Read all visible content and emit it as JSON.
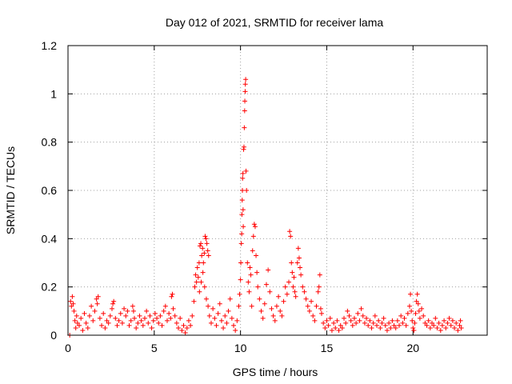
{
  "chart_data": {
    "type": "scatter",
    "title": "Day 012 of 2021, SRMTID for receiver lama",
    "xlabel": "GPS time / hours",
    "ylabel": "SRMTID / TECUs",
    "xlim": [
      0,
      24.3
    ],
    "ylim": [
      0,
      1.2
    ],
    "xticks": [
      0,
      5,
      10,
      15,
      20
    ],
    "xtick_labels": [
      "0",
      "5",
      "10",
      "15",
      "20"
    ],
    "yticks": [
      0,
      0.2,
      0.4,
      0.6,
      0.8,
      1.0,
      1.2
    ],
    "ytick_labels": [
      "0",
      "0.2",
      "0.4",
      "0.6",
      "0.8",
      "1",
      "1.2"
    ],
    "grid": true,
    "marker": "+",
    "color": "#ff0000",
    "series": [
      {
        "name": "SRMTID",
        "points": [
          [
            0.1,
            0.0
          ],
          [
            0.15,
            0.14
          ],
          [
            0.2,
            0.12
          ],
          [
            0.25,
            0.16
          ],
          [
            0.3,
            0.13
          ],
          [
            0.35,
            0.1
          ],
          [
            0.4,
            0.06
          ],
          [
            0.45,
            0.03
          ],
          [
            0.5,
            0.08
          ],
          [
            0.55,
            0.05
          ],
          [
            0.65,
            0.04
          ],
          [
            0.75,
            0.07
          ],
          [
            0.85,
            0.02
          ],
          [
            0.95,
            0.09
          ],
          [
            1.05,
            0.05
          ],
          [
            1.15,
            0.03
          ],
          [
            1.25,
            0.08
          ],
          [
            1.35,
            0.12
          ],
          [
            1.45,
            0.06
          ],
          [
            1.55,
            0.1
          ],
          [
            1.65,
            0.15
          ],
          [
            1.7,
            0.13
          ],
          [
            1.75,
            0.16
          ],
          [
            1.85,
            0.07
          ],
          [
            1.95,
            0.04
          ],
          [
            2.05,
            0.09
          ],
          [
            2.15,
            0.03
          ],
          [
            2.25,
            0.06
          ],
          [
            2.35,
            0.05
          ],
          [
            2.45,
            0.08
          ],
          [
            2.55,
            0.11
          ],
          [
            2.6,
            0.13
          ],
          [
            2.65,
            0.14
          ],
          [
            2.75,
            0.07
          ],
          [
            2.85,
            0.04
          ],
          [
            2.95,
            0.06
          ],
          [
            3.05,
            0.09
          ],
          [
            3.15,
            0.05
          ],
          [
            3.25,
            0.11
          ],
          [
            3.35,
            0.08
          ],
          [
            3.45,
            0.1
          ],
          [
            3.55,
            0.04
          ],
          [
            3.65,
            0.06
          ],
          [
            3.75,
            0.12
          ],
          [
            3.8,
            0.1
          ],
          [
            3.85,
            0.07
          ],
          [
            3.95,
            0.03
          ],
          [
            4.05,
            0.05
          ],
          [
            4.15,
            0.08
          ],
          [
            4.25,
            0.06
          ],
          [
            4.35,
            0.04
          ],
          [
            4.45,
            0.07
          ],
          [
            4.55,
            0.1
          ],
          [
            4.65,
            0.05
          ],
          [
            4.75,
            0.08
          ],
          [
            4.85,
            0.03
          ],
          [
            4.95,
            0.06
          ],
          [
            5.05,
            0.09
          ],
          [
            5.15,
            0.07
          ],
          [
            5.25,
            0.05
          ],
          [
            5.35,
            0.08
          ],
          [
            5.45,
            0.04
          ],
          [
            5.55,
            0.1
          ],
          [
            5.65,
            0.12
          ],
          [
            5.75,
            0.06
          ],
          [
            5.85,
            0.09
          ],
          [
            5.95,
            0.07
          ],
          [
            6.0,
            0.16
          ],
          [
            6.05,
            0.17
          ],
          [
            6.1,
            0.11
          ],
          [
            6.2,
            0.08
          ],
          [
            6.3,
            0.05
          ],
          [
            6.4,
            0.03
          ],
          [
            6.5,
            0.07
          ],
          [
            6.6,
            0.02
          ],
          [
            6.7,
            0.04
          ],
          [
            6.8,
            0.01
          ],
          [
            6.9,
            0.03
          ],
          [
            7.0,
            0.06
          ],
          [
            7.1,
            0.04
          ],
          [
            7.2,
            0.08
          ],
          [
            7.3,
            0.14
          ],
          [
            7.35,
            0.2
          ],
          [
            7.4,
            0.25
          ],
          [
            7.45,
            0.22
          ],
          [
            7.5,
            0.28
          ],
          [
            7.55,
            0.24
          ],
          [
            7.6,
            0.3
          ],
          [
            7.65,
            0.37
          ],
          [
            7.7,
            0.38
          ],
          [
            7.75,
            0.33
          ],
          [
            7.8,
            0.36
          ],
          [
            7.85,
            0.3
          ],
          [
            7.9,
            0.34
          ],
          [
            7.95,
            0.41
          ],
          [
            8.0,
            0.4
          ],
          [
            8.05,
            0.38
          ],
          [
            8.1,
            0.35
          ],
          [
            8.15,
            0.33
          ],
          [
            7.62,
            0.18
          ],
          [
            7.72,
            0.22
          ],
          [
            7.82,
            0.26
          ],
          [
            7.92,
            0.2
          ],
          [
            8.02,
            0.15
          ],
          [
            8.12,
            0.12
          ],
          [
            8.2,
            0.08
          ],
          [
            8.3,
            0.05
          ],
          [
            8.4,
            0.11
          ],
          [
            8.5,
            0.07
          ],
          [
            8.6,
            0.04
          ],
          [
            8.7,
            0.09
          ],
          [
            8.8,
            0.13
          ],
          [
            8.9,
            0.06
          ],
          [
            9.0,
            0.03
          ],
          [
            9.1,
            0.08
          ],
          [
            9.2,
            0.05
          ],
          [
            9.3,
            0.1
          ],
          [
            9.4,
            0.15
          ],
          [
            9.5,
            0.07
          ],
          [
            9.6,
            0.04
          ],
          [
            9.7,
            0.02
          ],
          [
            9.8,
            0.06
          ],
          [
            9.9,
            0.12
          ],
          [
            9.95,
            0.17
          ],
          [
            10.0,
            0.23
          ],
          [
            10.02,
            0.3
          ],
          [
            10.05,
            0.38
          ],
          [
            10.07,
            0.42
          ],
          [
            10.08,
            0.5
          ],
          [
            10.1,
            0.56
          ],
          [
            10.11,
            0.6
          ],
          [
            10.12,
            0.65
          ],
          [
            10.14,
            0.67
          ],
          [
            10.15,
            0.52
          ],
          [
            10.16,
            0.45
          ],
          [
            10.18,
            0.77
          ],
          [
            10.2,
            0.78
          ],
          [
            10.22,
            0.86
          ],
          [
            10.24,
            0.93
          ],
          [
            10.25,
            0.97
          ],
          [
            10.27,
            1.01
          ],
          [
            10.28,
            1.04
          ],
          [
            10.3,
            1.06
          ],
          [
            10.32,
            0.68
          ],
          [
            10.35,
            0.6
          ],
          [
            10.4,
            0.3
          ],
          [
            10.45,
            0.22
          ],
          [
            10.5,
            0.18
          ],
          [
            10.55,
            0.28
          ],
          [
            10.6,
            0.25
          ],
          [
            10.65,
            0.12
          ],
          [
            10.7,
            0.35
          ],
          [
            10.75,
            0.41
          ],
          [
            10.8,
            0.46
          ],
          [
            10.85,
            0.45
          ],
          [
            10.9,
            0.33
          ],
          [
            10.95,
            0.26
          ],
          [
            11.0,
            0.2
          ],
          [
            11.1,
            0.15
          ],
          [
            11.2,
            0.1
          ],
          [
            11.3,
            0.07
          ],
          [
            11.4,
            0.13
          ],
          [
            11.5,
            0.21
          ],
          [
            11.6,
            0.27
          ],
          [
            11.7,
            0.18
          ],
          [
            11.8,
            0.11
          ],
          [
            11.9,
            0.08
          ],
          [
            12.0,
            0.06
          ],
          [
            12.1,
            0.12
          ],
          [
            12.2,
            0.16
          ],
          [
            12.3,
            0.1
          ],
          [
            12.4,
            0.08
          ],
          [
            12.5,
            0.14
          ],
          [
            12.6,
            0.2
          ],
          [
            12.7,
            0.17
          ],
          [
            12.8,
            0.22
          ],
          [
            12.85,
            0.43
          ],
          [
            12.9,
            0.41
          ],
          [
            12.95,
            0.3
          ],
          [
            13.0,
            0.26
          ],
          [
            13.05,
            0.2
          ],
          [
            13.1,
            0.24
          ],
          [
            13.15,
            0.18
          ],
          [
            13.2,
            0.16
          ],
          [
            13.3,
            0.3
          ],
          [
            13.35,
            0.36
          ],
          [
            13.4,
            0.32
          ],
          [
            13.45,
            0.28
          ],
          [
            13.5,
            0.25
          ],
          [
            13.6,
            0.2
          ],
          [
            13.7,
            0.18
          ],
          [
            13.8,
            0.15
          ],
          [
            13.9,
            0.12
          ],
          [
            14.0,
            0.1
          ],
          [
            14.1,
            0.14
          ],
          [
            14.2,
            0.08
          ],
          [
            14.3,
            0.06
          ],
          [
            14.4,
            0.12
          ],
          [
            14.5,
            0.18
          ],
          [
            14.55,
            0.2
          ],
          [
            14.6,
            0.25
          ],
          [
            14.65,
            0.11
          ],
          [
            14.7,
            0.09
          ],
          [
            14.8,
            0.05
          ],
          [
            14.9,
            0.03
          ],
          [
            15.0,
            0.06
          ],
          [
            15.1,
            0.04
          ],
          [
            15.2,
            0.07
          ],
          [
            15.3,
            0.02
          ],
          [
            15.4,
            0.05
          ],
          [
            15.5,
            0.03
          ],
          [
            15.6,
            0.06
          ],
          [
            15.7,
            0.02
          ],
          [
            15.8,
            0.04
          ],
          [
            15.9,
            0.03
          ],
          [
            16.0,
            0.07
          ],
          [
            16.1,
            0.05
          ],
          [
            16.2,
            0.1
          ],
          [
            16.3,
            0.08
          ],
          [
            16.4,
            0.06
          ],
          [
            16.5,
            0.04
          ],
          [
            16.6,
            0.07
          ],
          [
            16.7,
            0.05
          ],
          [
            16.8,
            0.09
          ],
          [
            16.9,
            0.06
          ],
          [
            17.0,
            0.11
          ],
          [
            17.1,
            0.08
          ],
          [
            17.2,
            0.05
          ],
          [
            17.3,
            0.07
          ],
          [
            17.4,
            0.04
          ],
          [
            17.5,
            0.06
          ],
          [
            17.6,
            0.03
          ],
          [
            17.7,
            0.05
          ],
          [
            17.8,
            0.08
          ],
          [
            17.9,
            0.04
          ],
          [
            18.0,
            0.06
          ],
          [
            18.1,
            0.03
          ],
          [
            18.2,
            0.05
          ],
          [
            18.3,
            0.07
          ],
          [
            18.4,
            0.04
          ],
          [
            18.5,
            0.02
          ],
          [
            18.6,
            0.05
          ],
          [
            18.7,
            0.03
          ],
          [
            18.8,
            0.06
          ],
          [
            18.9,
            0.04
          ],
          [
            19.0,
            0.03
          ],
          [
            19.1,
            0.06
          ],
          [
            19.2,
            0.04
          ],
          [
            19.3,
            0.08
          ],
          [
            19.4,
            0.05
          ],
          [
            19.5,
            0.07
          ],
          [
            19.6,
            0.04
          ],
          [
            19.7,
            0.09
          ],
          [
            19.8,
            0.12
          ],
          [
            19.85,
            0.17
          ],
          [
            19.9,
            0.1
          ],
          [
            19.95,
            0.06
          ],
          [
            20.0,
            0.03
          ],
          [
            20.05,
            0.02
          ],
          [
            20.1,
            0.05
          ],
          [
            20.15,
            0.09
          ],
          [
            20.2,
            0.14
          ],
          [
            20.25,
            0.17
          ],
          [
            20.3,
            0.13
          ],
          [
            20.35,
            0.1
          ],
          [
            20.4,
            0.07
          ],
          [
            20.5,
            0.11
          ],
          [
            20.6,
            0.08
          ],
          [
            20.7,
            0.05
          ],
          [
            20.8,
            0.04
          ],
          [
            20.9,
            0.06
          ],
          [
            21.0,
            0.03
          ],
          [
            21.1,
            0.05
          ],
          [
            21.2,
            0.04
          ],
          [
            21.3,
            0.07
          ],
          [
            21.4,
            0.03
          ],
          [
            21.5,
            0.05
          ],
          [
            21.6,
            0.02
          ],
          [
            21.7,
            0.04
          ],
          [
            21.8,
            0.06
          ],
          [
            21.9,
            0.03
          ],
          [
            22.0,
            0.05
          ],
          [
            22.1,
            0.07
          ],
          [
            22.2,
            0.04
          ],
          [
            22.3,
            0.06
          ],
          [
            22.4,
            0.03
          ],
          [
            22.5,
            0.05
          ],
          [
            22.6,
            0.02
          ],
          [
            22.7,
            0.04
          ],
          [
            22.75,
            0.06
          ],
          [
            22.8,
            0.03
          ]
        ]
      }
    ]
  }
}
